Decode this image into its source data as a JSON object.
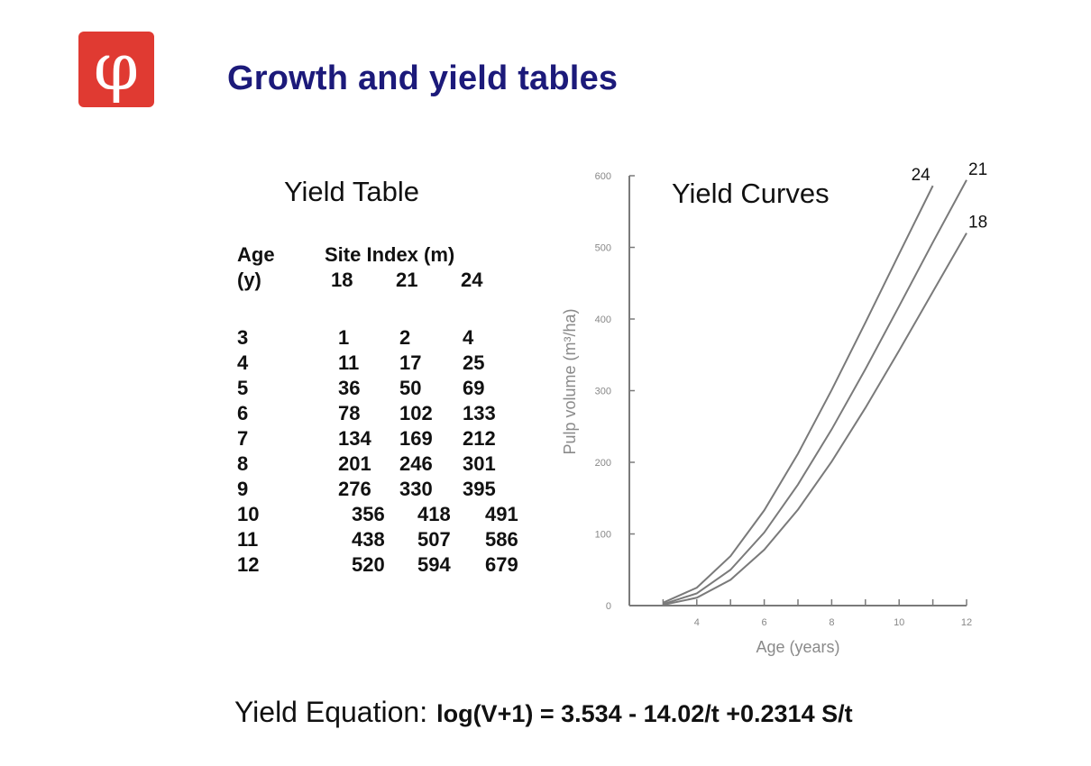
{
  "slide": {
    "title": "Growth and yield tables",
    "logo_glyph": "φ",
    "logo_color": "#e03a32",
    "title_color": "#1c1a7a"
  },
  "yield_table": {
    "title": "Yield Table",
    "age_header": "Age",
    "age_unit": "(y)",
    "site_index_header": "Site Index (m)",
    "site_indices": [
      "18",
      "21",
      "24"
    ],
    "rows": [
      {
        "age": "3",
        "v18": "1",
        "v21": "2",
        "v24": "4"
      },
      {
        "age": "4",
        "v18": "11",
        "v21": "17",
        "v24": "25"
      },
      {
        "age": "5",
        "v18": "36",
        "v21": "50",
        "v24": "69"
      },
      {
        "age": "6",
        "v18": "78",
        "v21": "102",
        "v24": "133"
      },
      {
        "age": "7",
        "v18": "134",
        "v21": "169",
        "v24": "212"
      },
      {
        "age": "8",
        "v18": "201",
        "v21": "246",
        "v24": "301"
      },
      {
        "age": "9",
        "v18": "276",
        "v21": "330",
        "v24": "395"
      },
      {
        "age": "10",
        "v18": "356",
        "v21": "418",
        "v24": "491"
      },
      {
        "age": "11",
        "v18": "438",
        "v21": "507",
        "v24": "586"
      },
      {
        "age": "12",
        "v18": "520",
        "v21": "594",
        "v24": "679"
      }
    ]
  },
  "equation": {
    "label": "Yield Equation:",
    "formula": "log(V+1) = 3.534 - 14.02/t +0.2314 S/t"
  },
  "chart_data": {
    "type": "line",
    "title": "Yield Curves",
    "xlabel": "Age (years)",
    "ylabel": "Pulp volume (m³/ha)",
    "xlim": [
      2,
      12
    ],
    "ylim": [
      0,
      600
    ],
    "xticks": [
      4,
      6,
      8,
      10,
      12
    ],
    "yticks": [
      0,
      100,
      200,
      300,
      400,
      500,
      600
    ],
    "grid": false,
    "line_color": "#7a7a7a",
    "series": [
      {
        "name": "18",
        "x": [
          3,
          4,
          5,
          6,
          7,
          8,
          9,
          10,
          11,
          12
        ],
        "values": [
          1,
          11,
          36,
          78,
          134,
          201,
          276,
          356,
          438,
          520
        ]
      },
      {
        "name": "21",
        "x": [
          3,
          4,
          5,
          6,
          7,
          8,
          9,
          10,
          11,
          12
        ],
        "values": [
          2,
          17,
          50,
          102,
          169,
          246,
          330,
          418,
          507,
          594
        ]
      },
      {
        "name": "24",
        "x": [
          3,
          4,
          5,
          6,
          7,
          8,
          9,
          10,
          11
        ],
        "values": [
          4,
          25,
          69,
          133,
          212,
          301,
          395,
          491,
          586
        ]
      }
    ]
  }
}
